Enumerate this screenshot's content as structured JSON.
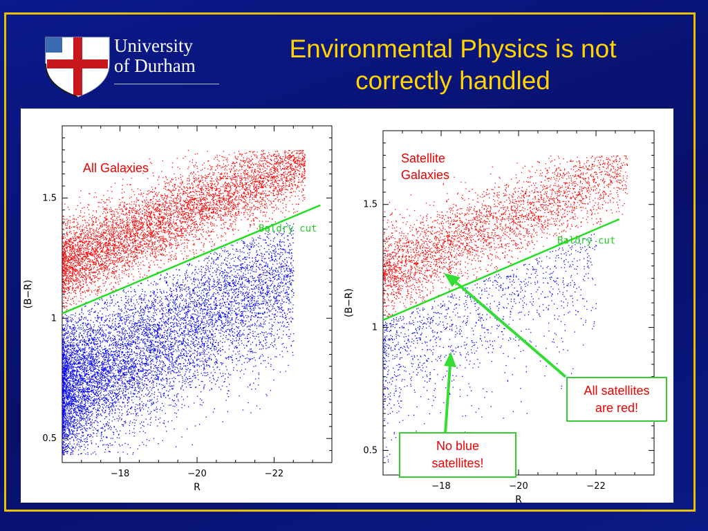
{
  "slide": {
    "title_line1": "Environmental Physics is not",
    "title_line2": "correctly handled",
    "logo_line1": "University",
    "logo_line2": "of Durham"
  },
  "callouts": {
    "red": [
      "All satellites",
      "are red!"
    ],
    "blue": [
      "No blue",
      "satellites!"
    ]
  },
  "colors": {
    "red": "#ff0000",
    "blue": "#0000ff",
    "cut": "#22dd22",
    "title": "#ffd400",
    "frame": "#e8c200"
  },
  "chart_data": [
    {
      "type": "scatter",
      "panel_label_lines": [
        "All Galaxies"
      ],
      "xlabel": "R",
      "ylabel": "(B−R)",
      "xlim": [
        -16.5,
        -23.5
      ],
      "ylim": [
        0.4,
        1.8
      ],
      "xticks": [
        {
          "v": -18,
          "label": "−18"
        },
        {
          "v": -20,
          "label": "−20"
        },
        {
          "v": -22,
          "label": "−22"
        }
      ],
      "yticks": [
        {
          "v": 0.5,
          "label": "0.5"
        },
        {
          "v": 1,
          "label": "1"
        },
        {
          "v": 1.5,
          "label": "1.5"
        }
      ],
      "cut_line": {
        "label": "Baldry cut",
        "x": [
          -16.5,
          -23.2
        ],
        "y": [
          1.02,
          1.47
        ]
      },
      "series": [
        {
          "name": "red",
          "count": 6500,
          "color": "#ff0000"
        },
        {
          "name": "blue",
          "count": 9000,
          "color": "#0000ff"
        }
      ]
    },
    {
      "type": "scatter",
      "panel_label_lines": [
        "Satellite",
        "Galaxies"
      ],
      "xlabel": "R",
      "ylabel": "(B−R)",
      "xlim": [
        -16.5,
        -23.5
      ],
      "ylim": [
        0.4,
        1.8
      ],
      "xticks": [
        {
          "v": -18,
          "label": "−18"
        },
        {
          "v": -20,
          "label": "−20"
        },
        {
          "v": -22,
          "label": "−22"
        }
      ],
      "yticks": [
        {
          "v": 0.5,
          "label": "0.5"
        },
        {
          "v": 1,
          "label": "1"
        },
        {
          "v": 1.5,
          "label": "1.5"
        }
      ],
      "cut_line": {
        "label": "Baldry cut",
        "x": [
          -16.5,
          -22.6
        ],
        "y": [
          1.03,
          1.44
        ]
      },
      "series": [
        {
          "name": "red",
          "count": 3600,
          "color": "#ff0000"
        },
        {
          "name": "blue",
          "count": 1300,
          "color": "#0000ff"
        }
      ]
    }
  ]
}
